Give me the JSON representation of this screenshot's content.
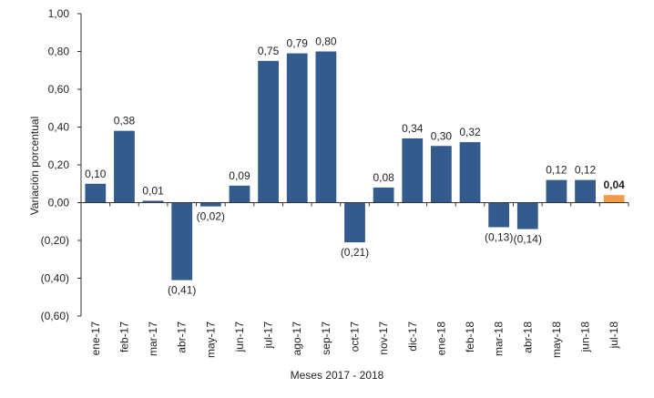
{
  "chart_data": {
    "type": "bar",
    "title": "",
    "xlabel": "Meses 2017 - 2018",
    "ylabel": "Variación porcentual",
    "ylim": [
      -0.6,
      1.0
    ],
    "yticks": [
      1.0,
      0.8,
      0.6,
      0.4,
      0.2,
      0.0,
      -0.2,
      -0.4,
      -0.6
    ],
    "ytick_labels": [
      "1,00",
      "0,80",
      "0,60",
      "0,40",
      "0,20",
      "0,00",
      "(0,20)",
      "(0,40)",
      "(0,60)"
    ],
    "grid": false,
    "categories": [
      "ene-17",
      "feb-17",
      "mar-17",
      "abr-17",
      "may-17",
      "jun-17",
      "jul-17",
      "ago-17",
      "sep-17",
      "oct-17",
      "nov-17",
      "dic-17",
      "ene-18",
      "feb-18",
      "mar-18",
      "abr-18",
      "may-18",
      "jun-18",
      "jul-18"
    ],
    "values": [
      0.1,
      0.38,
      0.01,
      -0.41,
      -0.02,
      0.09,
      0.75,
      0.79,
      0.8,
      -0.21,
      0.08,
      0.34,
      0.3,
      0.32,
      -0.13,
      -0.14,
      0.12,
      0.12,
      0.04
    ],
    "data_labels": [
      "0,10",
      "0,38",
      "0,01",
      "(0,41)",
      "(0,02)",
      "0,09",
      "0,75",
      "0,79",
      "0,80",
      "(0,21)",
      "0,08",
      "0,34",
      "0,30",
      "0,32",
      "(0,13)",
      "(0,14)",
      "0,12",
      "0,12",
      "0,04"
    ],
    "highlight_index": 18,
    "colors": {
      "bar": "#335b8e",
      "highlight": "#f59a45",
      "axis": "#333333",
      "text": "#222222"
    }
  }
}
